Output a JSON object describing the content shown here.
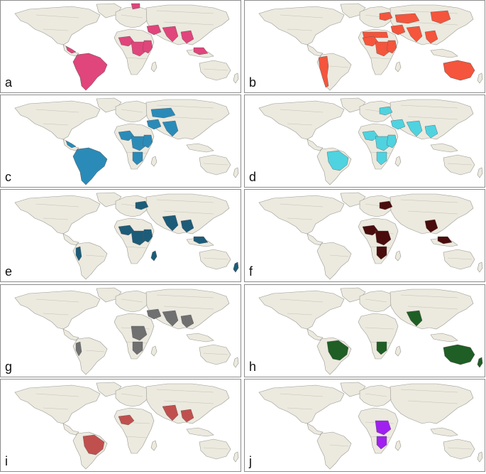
{
  "figure": {
    "land_color": "#ece9df",
    "coast_color": "#9a9a92",
    "border_color": "#b9b6ac",
    "panels": [
      {
        "label": "a",
        "color": "#e0457b",
        "regions": [
          "south-america",
          "central-america",
          "west-africa",
          "central-africa",
          "east-africa",
          "middle-east",
          "south-asia",
          "southeast-asia",
          "scandinavia",
          "maritime-se-asia"
        ]
      },
      {
        "label": "b",
        "color": "#f4553c",
        "regions": [
          "south-america-west",
          "north-africa",
          "west-africa",
          "central-africa",
          "east-africa",
          "eastern-europe",
          "central-asia",
          "middle-east",
          "south-asia",
          "southeast-asia",
          "east-asia",
          "australia"
        ]
      },
      {
        "label": "c",
        "color": "#2a8bb8",
        "regions": [
          "south-america",
          "central-america",
          "west-africa",
          "central-africa",
          "east-africa",
          "southern-africa",
          "central-asia",
          "middle-east",
          "south-asia"
        ]
      },
      {
        "label": "d",
        "color": "#4fd3e0",
        "regions": [
          "brazil",
          "west-africa",
          "central-africa",
          "east-africa",
          "southern-africa",
          "middle-east",
          "south-asia",
          "southeast-asia",
          "eastern-europe"
        ]
      },
      {
        "label": "e",
        "color": "#1c5c78",
        "regions": [
          "andes",
          "west-africa",
          "central-africa",
          "east-africa",
          "madagascar",
          "eastern-europe",
          "south-asia",
          "southeast-asia",
          "maritime-se-asia",
          "new-zealand"
        ]
      },
      {
        "label": "f",
        "color": "#4a0c0c",
        "regions": [
          "west-africa",
          "central-africa",
          "southern-africa",
          "southeast-asia",
          "maritime-se-asia",
          "eastern-europe"
        ]
      },
      {
        "label": "g",
        "color": "#707070",
        "regions": [
          "andes",
          "central-africa",
          "southern-africa",
          "middle-east",
          "south-asia",
          "southeast-asia"
        ]
      },
      {
        "label": "h",
        "color": "#1f5e25",
        "regions": [
          "brazil",
          "south-asia",
          "southern-africa",
          "australia",
          "new-zealand"
        ]
      },
      {
        "label": "i",
        "color": "#c0504d",
        "regions": [
          "brazil",
          "west-africa",
          "south-asia",
          "southeast-asia"
        ]
      },
      {
        "label": "j",
        "color": "#a020f0",
        "regions": [
          "central-africa",
          "southern-africa"
        ]
      }
    ]
  }
}
